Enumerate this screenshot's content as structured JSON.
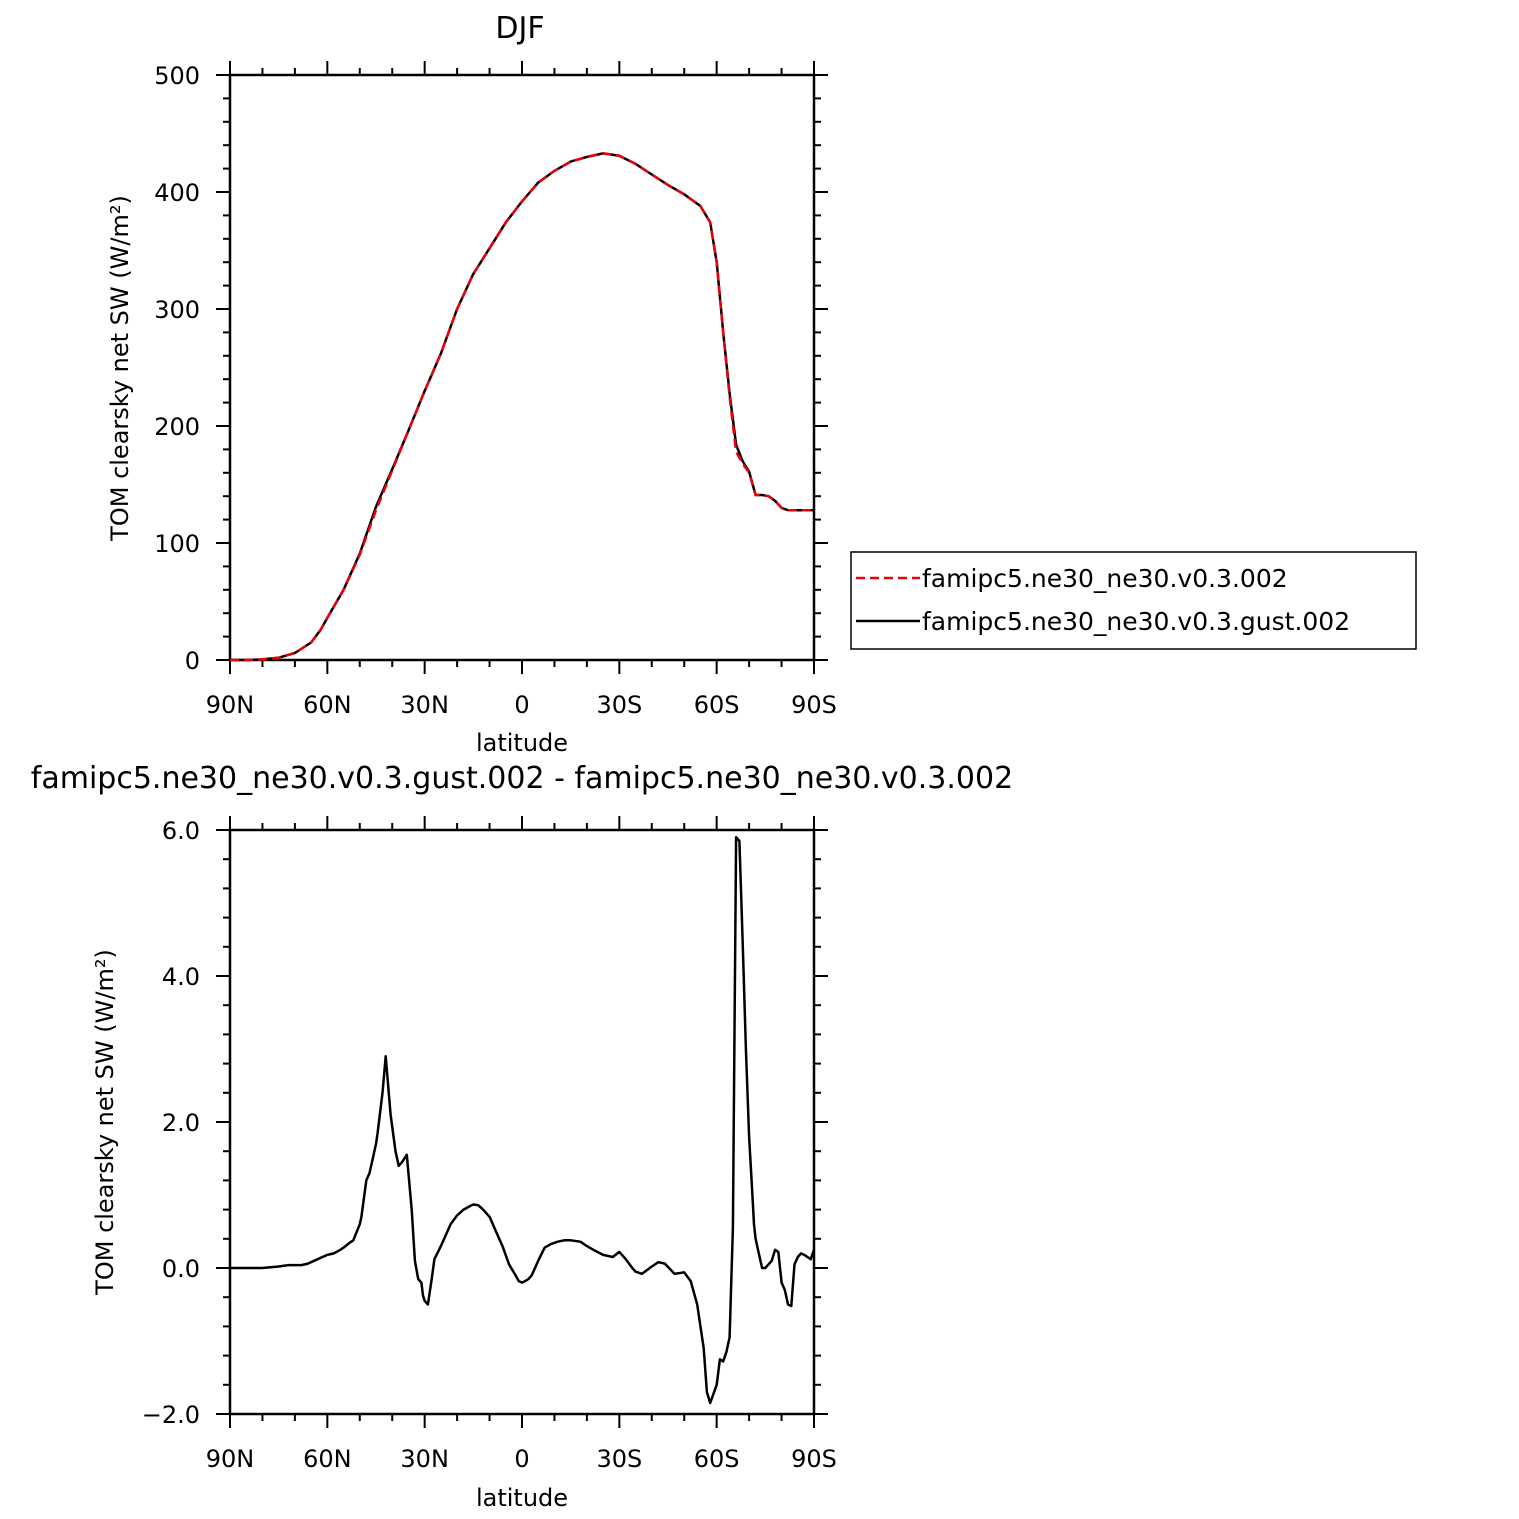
{
  "chart_data": [
    {
      "type": "line",
      "title": "DJF",
      "xlabel": "latitude",
      "ylabel": "TOM clearsky net SW (W/m²)",
      "x_ticks": [
        "90N",
        "60N",
        "30N",
        "0",
        "30S",
        "60S",
        "90S"
      ],
      "x_tick_values": [
        90,
        60,
        30,
        0,
        -30,
        -60,
        -90
      ],
      "xlim": [
        90,
        -90
      ],
      "y_ticks": [
        "0",
        "100",
        "200",
        "300",
        "400",
        "500"
      ],
      "y_tick_values": [
        0,
        100,
        200,
        300,
        400,
        500
      ],
      "ylim": [
        0,
        500
      ],
      "grid": false,
      "legend_position": "right",
      "x": [
        90,
        85,
        80,
        75,
        70,
        65,
        62,
        60,
        55,
        50,
        45,
        40,
        35,
        30,
        25,
        20,
        15,
        10,
        5,
        0,
        -5,
        -10,
        -15,
        -20,
        -25,
        -30,
        -35,
        -40,
        -45,
        -50,
        -55,
        -58,
        -60,
        -62,
        -64,
        -66,
        -68,
        -70,
        -72,
        -74,
        -76,
        -78,
        -80,
        -82,
        -84,
        -86,
        -88,
        -90
      ],
      "series": [
        {
          "name": "famipc5.ne30_ne30.v0.3.002",
          "color": "#e8000b",
          "dash": "dashed",
          "values": [
            0,
            0,
            0.5,
            2,
            6,
            15,
            26,
            36,
            60,
            90,
            128,
            162,
            196,
            230,
            262,
            300,
            330,
            352,
            374,
            392,
            408,
            418,
            426,
            430,
            433,
            431,
            424,
            415,
            406,
            398,
            388,
            374,
            340,
            280,
            225,
            178,
            168,
            160,
            141,
            141,
            140,
            136,
            130,
            128,
            128,
            128,
            128,
            128
          ]
        },
        {
          "name": "famipc5.ne30_ne30.v0.3.gust.002",
          "color": "#000000",
          "dash": "solid",
          "values": [
            0,
            0,
            0.5,
            2,
            6,
            15,
            26,
            36,
            60,
            91,
            131,
            163,
            196,
            230,
            262,
            300,
            330,
            352,
            374,
            392,
            408,
            418,
            426,
            430,
            433,
            431,
            424,
            415,
            406,
            398,
            388,
            374,
            340,
            280,
            228,
            184,
            170,
            161,
            141,
            141,
            140,
            136,
            130,
            128,
            128,
            128,
            128,
            128
          ]
        }
      ]
    },
    {
      "type": "line",
      "title": "famipc5.ne30_ne30.v0.3.gust.002 - famipc5.ne30_ne30.v0.3.002",
      "xlabel": "latitude",
      "ylabel": "TOM clearsky net SW (W/m²)",
      "x_ticks": [
        "90N",
        "60N",
        "30N",
        "0",
        "30S",
        "60S",
        "90S"
      ],
      "x_tick_values": [
        90,
        60,
        30,
        0,
        -30,
        -60,
        -90
      ],
      "xlim": [
        90,
        -90
      ],
      "y_ticks": [
        "−2.0",
        "0.0",
        "2.0",
        "4.0",
        "6.0"
      ],
      "y_tick_values": [
        -2,
        0,
        2,
        4,
        6
      ],
      "ylim": [
        -2,
        6
      ],
      "grid": false,
      "x": [
        90,
        80,
        75,
        72,
        68,
        66,
        63,
        60,
        58,
        56,
        55,
        53,
        52,
        50,
        49.5,
        48,
        47,
        46,
        45,
        44.5,
        43,
        42,
        40.5,
        39,
        38,
        37,
        35.5,
        34,
        33,
        32,
        31,
        30.5,
        30,
        29,
        28,
        27,
        25,
        22,
        20,
        18,
        16,
        15,
        13.5,
        12,
        10,
        8,
        6,
        4,
        2,
        1,
        0,
        -1,
        -2,
        -3,
        -4,
        -5,
        -7,
        -9,
        -11,
        -13,
        -15,
        -18,
        -20,
        -22,
        -25,
        -28,
        -30,
        -32,
        -34,
        -35,
        -37,
        -40,
        -42,
        -44,
        -47,
        -50,
        -52,
        -54,
        -56,
        -57,
        -58,
        -60,
        -61,
        -62,
        -63,
        -64,
        -65,
        -66,
        -67,
        -68,
        -69,
        -70,
        -71,
        -71.5,
        -72,
        -73,
        -74,
        -75,
        -76,
        -77,
        -78,
        -79,
        -80,
        -81,
        -82,
        -83,
        -84,
        -85,
        -86,
        -87,
        -88,
        -89,
        -90
      ],
      "series": [
        {
          "name": "",
          "color": "#000000",
          "dash": "solid",
          "values": [
            0,
            0,
            0.02,
            0.04,
            0.04,
            0.06,
            0.12,
            0.18,
            0.2,
            0.25,
            0.28,
            0.35,
            0.38,
            0.6,
            0.7,
            1.2,
            1.3,
            1.5,
            1.7,
            1.85,
            2.4,
            2.9,
            2.1,
            1.6,
            1.4,
            1.45,
            1.55,
            0.8,
            0.1,
            -0.15,
            -0.2,
            -0.38,
            -0.45,
            -0.5,
            -0.2,
            0.12,
            0.3,
            0.6,
            0.72,
            0.8,
            0.85,
            0.87,
            0.86,
            0.8,
            0.7,
            0.5,
            0.3,
            0.05,
            -0.1,
            -0.18,
            -0.2,
            -0.18,
            -0.15,
            -0.1,
            0.0,
            0.1,
            0.28,
            0.33,
            0.36,
            0.38,
            0.38,
            0.36,
            0.3,
            0.25,
            0.18,
            0.15,
            0.22,
            0.12,
            0.0,
            -0.05,
            -0.08,
            0.02,
            0.08,
            0.06,
            -0.08,
            -0.06,
            -0.18,
            -0.5,
            -1.1,
            -1.7,
            -1.85,
            -1.6,
            -1.25,
            -1.28,
            -1.15,
            -0.95,
            0.55,
            5.9,
            5.85,
            4.5,
            3.0,
            1.8,
            1.0,
            0.6,
            0.4,
            0.2,
            0.0,
            0.0,
            0.05,
            0.1,
            0.25,
            0.22,
            -0.2,
            -0.3,
            -0.5,
            -0.52,
            0.05,
            0.15,
            0.2,
            0.18,
            0.15,
            0.12,
            0.25
          ]
        }
      ]
    }
  ]
}
